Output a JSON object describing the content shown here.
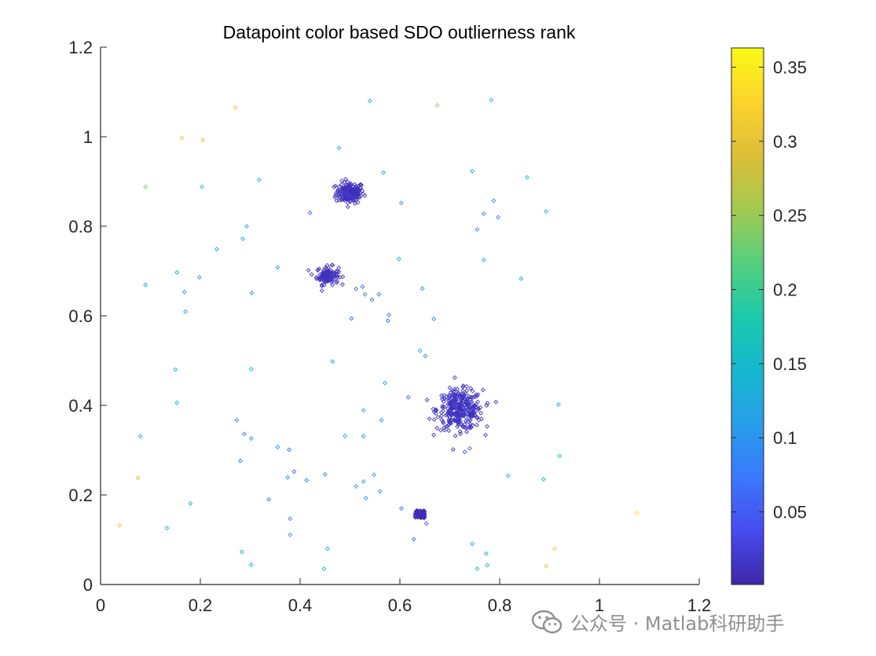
{
  "chart_data": {
    "type": "scatter",
    "title": "Datapoint color based SDO outlierness rank",
    "xlabel": "",
    "ylabel": "",
    "xlim": [
      0,
      1.2
    ],
    "ylim": [
      0,
      1.2
    ],
    "xticks": [
      0,
      0.2,
      0.4,
      0.6,
      0.8,
      1,
      1.2
    ],
    "xtick_labels": [
      "0",
      "0.2",
      "0.4",
      "0.6",
      "0.8",
      "1",
      "1.2"
    ],
    "yticks": [
      0,
      0.2,
      0.4,
      0.6,
      0.8,
      1,
      1.2
    ],
    "ytick_labels": [
      "0",
      "0.2",
      "0.4",
      "0.6",
      "0.8",
      "1",
      "1.2"
    ],
    "colorbar": {
      "colormap": "parula",
      "range": [
        0.001,
        0.363
      ],
      "ticks": [
        0.05,
        0.1,
        0.15,
        0.2,
        0.25,
        0.3,
        0.35
      ],
      "tick_labels": [
        "0.05",
        "0.1",
        "0.15",
        "0.2",
        "0.25",
        "0.3",
        "0.35"
      ]
    },
    "marker": "diamond",
    "clusters": [
      {
        "name": "cluster-top",
        "center": [
          0.5,
          0.875
        ],
        "spread": [
          0.014,
          0.012
        ],
        "count": 170,
        "rank": 0.012
      },
      {
        "name": "cluster-middle",
        "center": [
          0.455,
          0.69
        ],
        "spread": [
          0.011,
          0.01
        ],
        "count": 110,
        "rank": 0.012
      },
      {
        "name": "cluster-right",
        "center": [
          0.72,
          0.39
        ],
        "spread": [
          0.023,
          0.022
        ],
        "count": 320,
        "rank": 0.014
      },
      {
        "name": "cluster-bottom",
        "center": [
          0.64,
          0.157
        ],
        "spread": [
          0.006,
          0.005
        ],
        "count": 90,
        "rank": 0.008
      }
    ],
    "outliers": [
      {
        "x": 0.27,
        "y": 1.065,
        "c": 0.31
      },
      {
        "x": 0.163,
        "y": 0.997,
        "c": 0.31
      },
      {
        "x": 0.205,
        "y": 0.993,
        "c": 0.3
      },
      {
        "x": 0.675,
        "y": 1.07,
        "c": 0.25
      },
      {
        "x": 0.54,
        "y": 1.08,
        "c": 0.17
      },
      {
        "x": 0.783,
        "y": 1.082,
        "c": 0.17
      },
      {
        "x": 0.09,
        "y": 0.888,
        "c": 0.24
      },
      {
        "x": 0.203,
        "y": 0.888,
        "c": 0.17
      },
      {
        "x": 0.318,
        "y": 0.904,
        "c": 0.15
      },
      {
        "x": 0.855,
        "y": 0.909,
        "c": 0.15
      },
      {
        "x": 0.893,
        "y": 0.833,
        "c": 0.13
      },
      {
        "x": 0.745,
        "y": 0.923,
        "c": 0.13
      },
      {
        "x": 0.567,
        "y": 0.92,
        "c": 0.12
      },
      {
        "x": 0.478,
        "y": 0.975,
        "c": 0.12
      },
      {
        "x": 0.603,
        "y": 0.852,
        "c": 0.1
      },
      {
        "x": 0.788,
        "y": 0.857,
        "c": 0.08
      },
      {
        "x": 0.768,
        "y": 0.828,
        "c": 0.08
      },
      {
        "x": 0.797,
        "y": 0.82,
        "c": 0.07
      },
      {
        "x": 0.755,
        "y": 0.793,
        "c": 0.09
      },
      {
        "x": 0.42,
        "y": 0.83,
        "c": 0.06
      },
      {
        "x": 0.293,
        "y": 0.8,
        "c": 0.12
      },
      {
        "x": 0.285,
        "y": 0.772,
        "c": 0.11
      },
      {
        "x": 0.233,
        "y": 0.749,
        "c": 0.11
      },
      {
        "x": 0.598,
        "y": 0.727,
        "c": 0.13
      },
      {
        "x": 0.768,
        "y": 0.725,
        "c": 0.13
      },
      {
        "x": 0.355,
        "y": 0.708,
        "c": 0.1
      },
      {
        "x": 0.153,
        "y": 0.697,
        "c": 0.1
      },
      {
        "x": 0.198,
        "y": 0.686,
        "c": 0.1
      },
      {
        "x": 0.843,
        "y": 0.683,
        "c": 0.12
      },
      {
        "x": 0.09,
        "y": 0.669,
        "c": 0.12
      },
      {
        "x": 0.645,
        "y": 0.661,
        "c": 0.1
      },
      {
        "x": 0.525,
        "y": 0.665,
        "c": 0.06
      },
      {
        "x": 0.53,
        "y": 0.648,
        "c": 0.07
      },
      {
        "x": 0.512,
        "y": 0.66,
        "c": 0.07
      },
      {
        "x": 0.168,
        "y": 0.653,
        "c": 0.11
      },
      {
        "x": 0.303,
        "y": 0.651,
        "c": 0.12
      },
      {
        "x": 0.558,
        "y": 0.648,
        "c": 0.07
      },
      {
        "x": 0.544,
        "y": 0.636,
        "c": 0.06
      },
      {
        "x": 0.17,
        "y": 0.609,
        "c": 0.13
      },
      {
        "x": 0.503,
        "y": 0.594,
        "c": 0.06
      },
      {
        "x": 0.578,
        "y": 0.602,
        "c": 0.07
      },
      {
        "x": 0.576,
        "y": 0.589,
        "c": 0.06
      },
      {
        "x": 0.668,
        "y": 0.593,
        "c": 0.08
      },
      {
        "x": 0.64,
        "y": 0.522,
        "c": 0.12
      },
      {
        "x": 0.651,
        "y": 0.51,
        "c": 0.09
      },
      {
        "x": 0.465,
        "y": 0.498,
        "c": 0.12
      },
      {
        "x": 0.15,
        "y": 0.48,
        "c": 0.15
      },
      {
        "x": 0.302,
        "y": 0.481,
        "c": 0.14
      },
      {
        "x": 0.57,
        "y": 0.45,
        "c": 0.11
      },
      {
        "x": 0.617,
        "y": 0.418,
        "c": 0.06
      },
      {
        "x": 0.153,
        "y": 0.406,
        "c": 0.14
      },
      {
        "x": 0.918,
        "y": 0.402,
        "c": 0.14
      },
      {
        "x": 0.527,
        "y": 0.389,
        "c": 0.13
      },
      {
        "x": 0.273,
        "y": 0.367,
        "c": 0.09
      },
      {
        "x": 0.563,
        "y": 0.367,
        "c": 0.09
      },
      {
        "x": 0.288,
        "y": 0.336,
        "c": 0.07
      },
      {
        "x": 0.49,
        "y": 0.332,
        "c": 0.12
      },
      {
        "x": 0.527,
        "y": 0.331,
        "c": 0.11
      },
      {
        "x": 0.08,
        "y": 0.331,
        "c": 0.13
      },
      {
        "x": 0.302,
        "y": 0.326,
        "c": 0.09
      },
      {
        "x": 0.355,
        "y": 0.307,
        "c": 0.09
      },
      {
        "x": 0.74,
        "y": 0.304,
        "c": 0.06
      },
      {
        "x": 0.73,
        "y": 0.296,
        "c": 0.05
      },
      {
        "x": 0.378,
        "y": 0.301,
        "c": 0.06
      },
      {
        "x": 0.92,
        "y": 0.287,
        "c": 0.15
      },
      {
        "x": 0.28,
        "y": 0.276,
        "c": 0.08
      },
      {
        "x": 0.388,
        "y": 0.252,
        "c": 0.06
      },
      {
        "x": 0.075,
        "y": 0.238,
        "c": 0.28
      },
      {
        "x": 0.375,
        "y": 0.239,
        "c": 0.09
      },
      {
        "x": 0.45,
        "y": 0.246,
        "c": 0.09
      },
      {
        "x": 0.548,
        "y": 0.245,
        "c": 0.1
      },
      {
        "x": 0.413,
        "y": 0.233,
        "c": 0.08
      },
      {
        "x": 0.527,
        "y": 0.23,
        "c": 0.12
      },
      {
        "x": 0.817,
        "y": 0.243,
        "c": 0.13
      },
      {
        "x": 0.888,
        "y": 0.235,
        "c": 0.14
      },
      {
        "x": 0.512,
        "y": 0.219,
        "c": 0.11
      },
      {
        "x": 0.56,
        "y": 0.208,
        "c": 0.1
      },
      {
        "x": 0.532,
        "y": 0.193,
        "c": 0.1
      },
      {
        "x": 0.337,
        "y": 0.19,
        "c": 0.08
      },
      {
        "x": 0.18,
        "y": 0.181,
        "c": 0.14
      },
      {
        "x": 0.603,
        "y": 0.17,
        "c": 0.07
      },
      {
        "x": 1.075,
        "y": 0.16,
        "c": 0.34
      },
      {
        "x": 0.038,
        "y": 0.132,
        "c": 0.3
      },
      {
        "x": 0.133,
        "y": 0.126,
        "c": 0.16
      },
      {
        "x": 0.38,
        "y": 0.147,
        "c": 0.07
      },
      {
        "x": 0.38,
        "y": 0.111,
        "c": 0.09
      },
      {
        "x": 0.628,
        "y": 0.101,
        "c": 0.06
      },
      {
        "x": 0.653,
        "y": 0.136,
        "c": 0.05
      },
      {
        "x": 0.745,
        "y": 0.091,
        "c": 0.13
      },
      {
        "x": 0.91,
        "y": 0.08,
        "c": 0.31
      },
      {
        "x": 0.283,
        "y": 0.073,
        "c": 0.13
      },
      {
        "x": 0.455,
        "y": 0.08,
        "c": 0.14
      },
      {
        "x": 0.773,
        "y": 0.069,
        "c": 0.13
      },
      {
        "x": 0.302,
        "y": 0.044,
        "c": 0.14
      },
      {
        "x": 0.775,
        "y": 0.043,
        "c": 0.16
      },
      {
        "x": 0.893,
        "y": 0.041,
        "c": 0.3
      },
      {
        "x": 0.448,
        "y": 0.035,
        "c": 0.16
      },
      {
        "x": 0.755,
        "y": 0.035,
        "c": 0.17
      }
    ]
  },
  "watermark": {
    "text": "公众号 · Matlab科研助手",
    "icon": "wechat-icon"
  }
}
